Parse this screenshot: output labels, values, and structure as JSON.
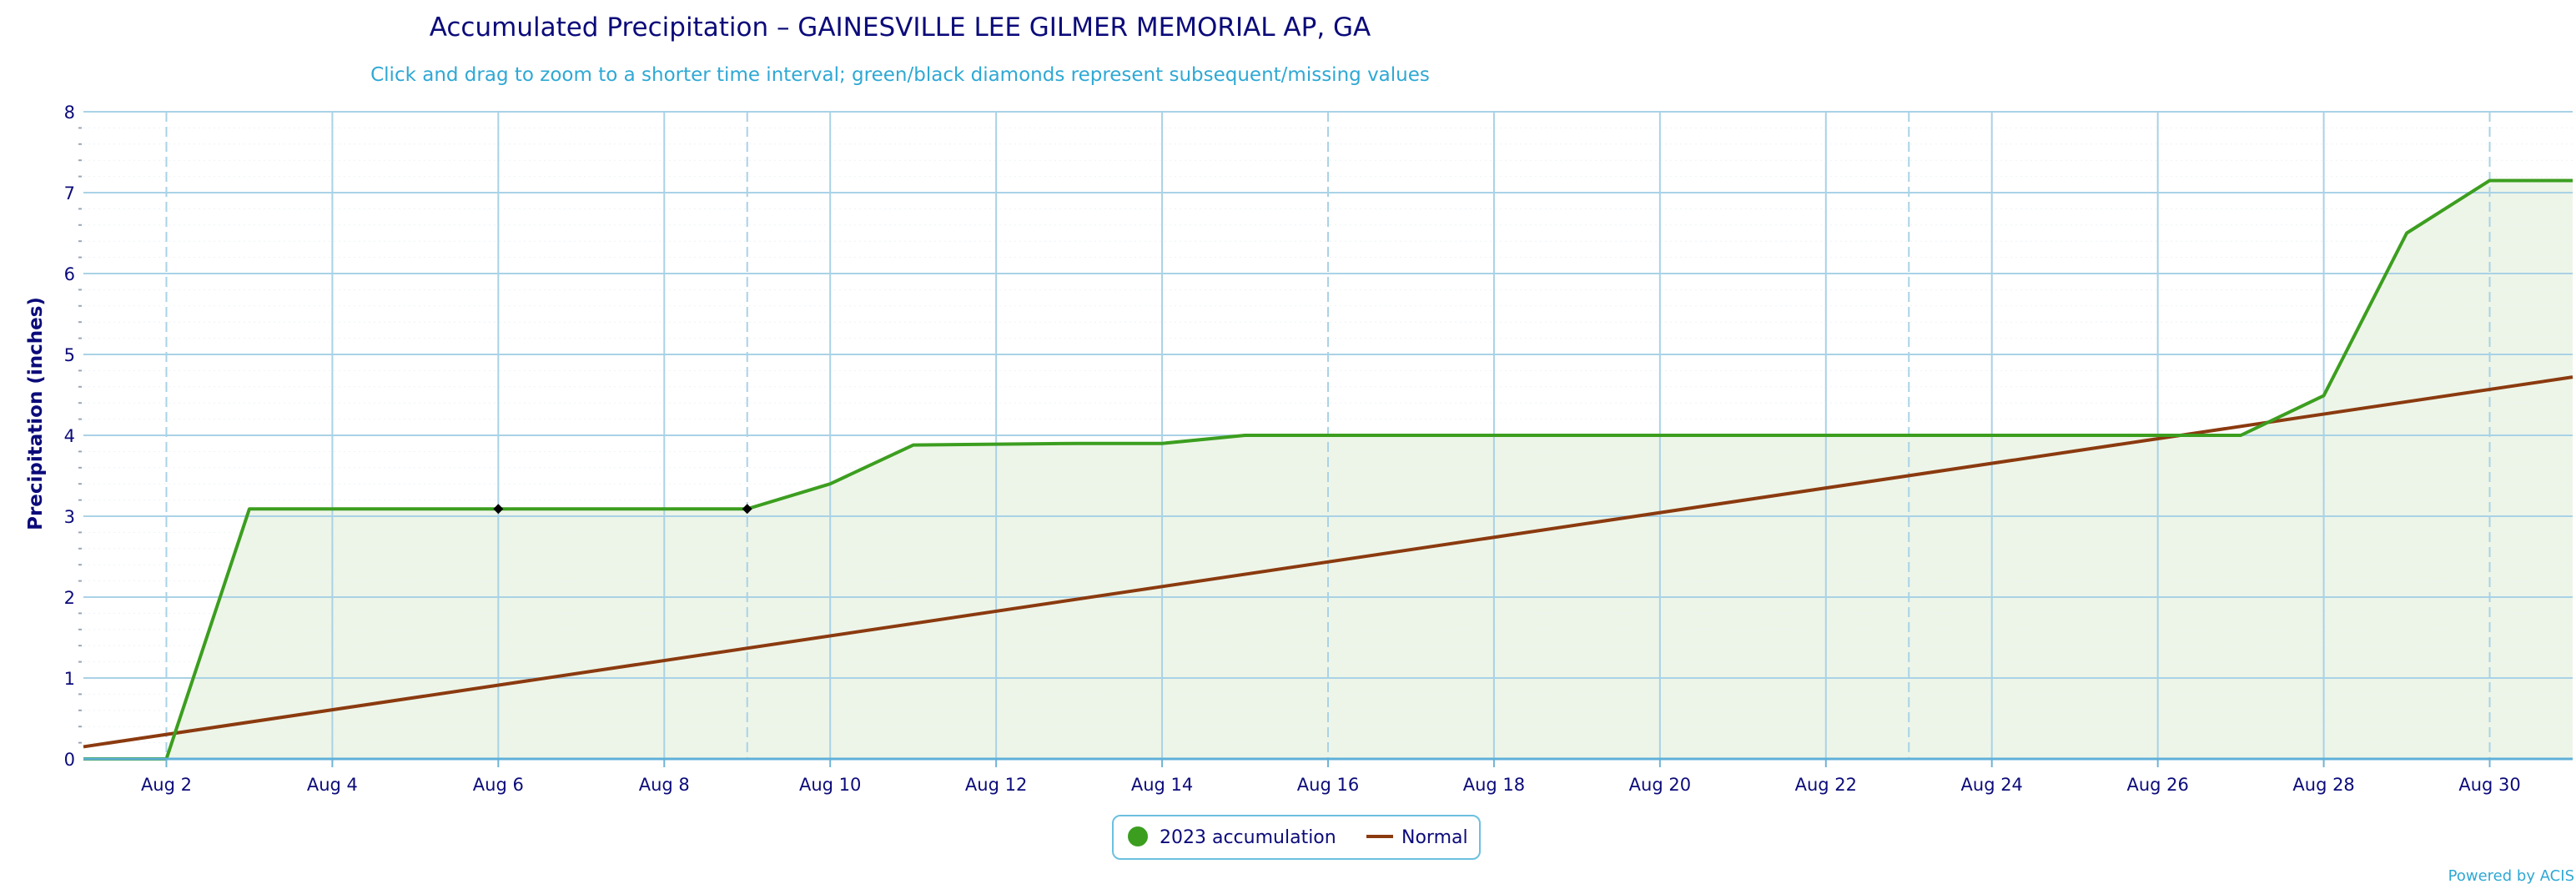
{
  "chart_data": {
    "type": "line",
    "title": "Accumulated Precipitation – GAINESVILLE LEE GILMER MEMORIAL AP, GA",
    "subtitle": "Click and drag to zoom to a shorter time interval; green/black diamonds represent subsequent/missing values",
    "ylabel": "Precipitation (inches)",
    "xlabel": "",
    "ylim": [
      0,
      8
    ],
    "y_ticks": [
      "0",
      "1",
      "2",
      "3",
      "4",
      "5",
      "6",
      "7",
      "8"
    ],
    "x_range": [
      1,
      31
    ],
    "x_ticks": [
      {
        "day": 2,
        "label": "Aug 2"
      },
      {
        "day": 4,
        "label": "Aug 4"
      },
      {
        "day": 6,
        "label": "Aug 6"
      },
      {
        "day": 8,
        "label": "Aug 8"
      },
      {
        "day": 10,
        "label": "Aug 10"
      },
      {
        "day": 12,
        "label": "Aug 12"
      },
      {
        "day": 14,
        "label": "Aug 14"
      },
      {
        "day": 16,
        "label": "Aug 16"
      },
      {
        "day": 18,
        "label": "Aug 18"
      },
      {
        "day": 20,
        "label": "Aug 20"
      },
      {
        "day": 22,
        "label": "Aug 22"
      },
      {
        "day": 24,
        "label": "Aug 24"
      },
      {
        "day": 26,
        "label": "Aug 26"
      },
      {
        "day": 28,
        "label": "Aug 28"
      },
      {
        "day": 30,
        "label": "Aug 30"
      }
    ],
    "grid": true,
    "legend_position": "bottom-center",
    "series": [
      {
        "name": "2023 accumulation",
        "color": "#3c9e1f",
        "fill": "#edf5e8",
        "x": [
          1,
          2,
          3,
          4,
          5,
          6,
          7,
          8,
          9,
          10,
          11,
          12,
          13,
          14,
          15,
          16,
          17,
          18,
          19,
          20,
          21,
          22,
          23,
          24,
          25,
          26,
          27,
          28,
          29,
          30,
          31
        ],
        "values": [
          0,
          0,
          3.09,
          3.09,
          3.09,
          3.09,
          3.09,
          3.09,
          3.09,
          3.4,
          3.88,
          3.89,
          3.9,
          3.9,
          4.0,
          4.0,
          4.0,
          4.0,
          4.0,
          4.0,
          4.0,
          4.0,
          4.0,
          4.0,
          4.0,
          4.0,
          4.0,
          4.49,
          6.5,
          7.15,
          7.15
        ]
      },
      {
        "name": "Normal",
        "color": "#8b3a0f",
        "x": [
          1,
          31
        ],
        "values": [
          0.15,
          4.72
        ]
      }
    ],
    "missing_markers": [
      {
        "day": 6,
        "value": 3.09
      },
      {
        "day": 9,
        "value": 3.09
      }
    ]
  },
  "credit": "Powered by ACIS"
}
